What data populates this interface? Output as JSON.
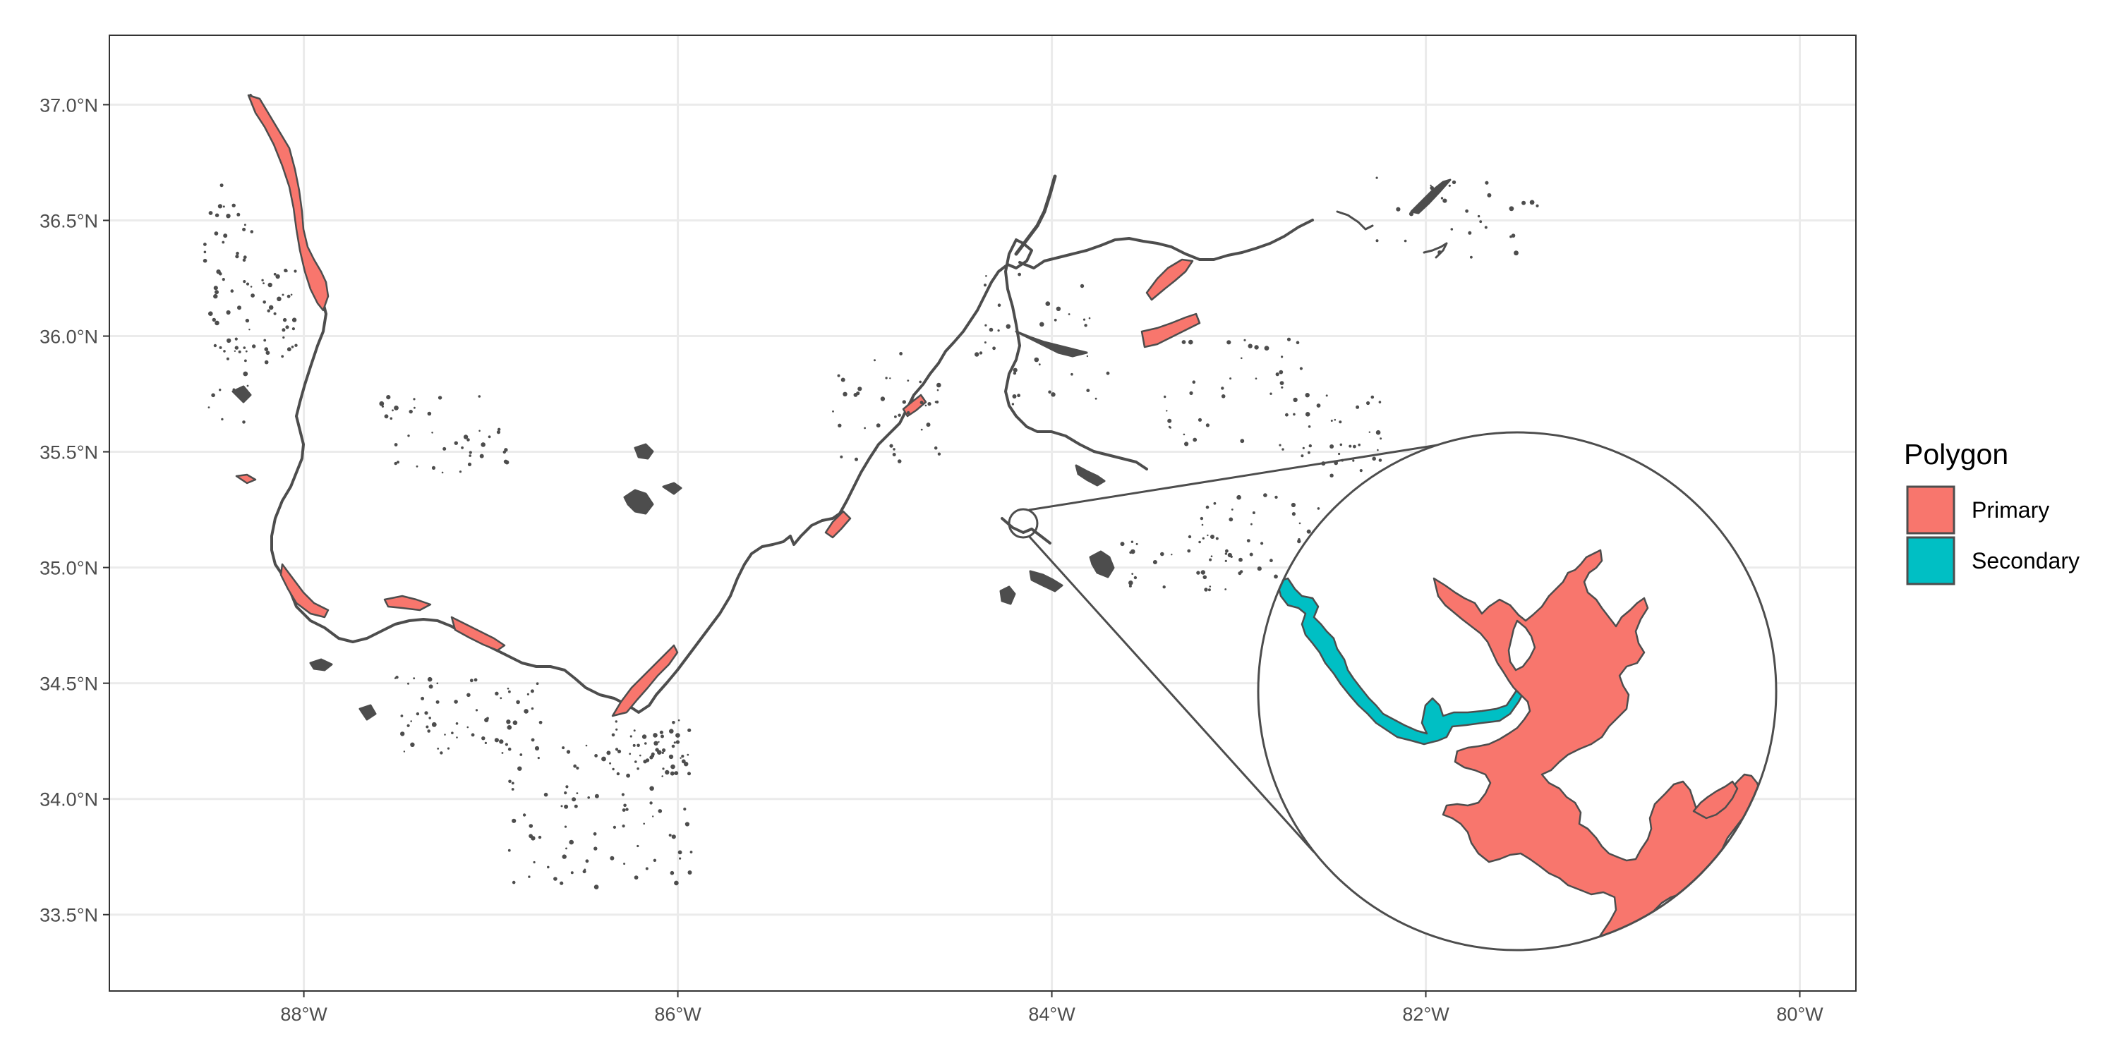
{
  "map": {
    "x_axis": {
      "unit": "longitude",
      "range": [
        -89.04,
        -79.7
      ],
      "ticks": [
        {
          "value": -88,
          "label": "88°W"
        },
        {
          "value": -86,
          "label": "86°W"
        },
        {
          "value": -84,
          "label": "84°W"
        },
        {
          "value": -82,
          "label": "82°W"
        },
        {
          "value": -80,
          "label": "80°W"
        }
      ]
    },
    "y_axis": {
      "unit": "latitude",
      "range": [
        33.17,
        37.3
      ],
      "ticks": [
        {
          "value": 33.5,
          "label": "33.5°N"
        },
        {
          "value": 34.0,
          "label": "34.0°N"
        },
        {
          "value": 34.5,
          "label": "34.5°N"
        },
        {
          "value": 35.0,
          "label": "35.0°N"
        },
        {
          "value": 35.5,
          "label": "35.5°N"
        },
        {
          "value": 36.0,
          "label": "36.0°N"
        },
        {
          "value": 36.5,
          "label": "36.5°N"
        },
        {
          "value": 37.0,
          "label": "37.0°N"
        }
      ]
    },
    "grid": true,
    "legend": {
      "title": "Polygon",
      "placement": "right",
      "entries": [
        {
          "label": "Primary",
          "color": "#F8766D"
        },
        {
          "label": "Secondary",
          "color": "#00BFC4"
        }
      ]
    },
    "colors": {
      "primary": "#F8766D",
      "secondary": "#00BFC4",
      "outline": "#4d4d4d",
      "grid": "#ebebeb",
      "panel_border": "#333333"
    },
    "zoom_inset": {
      "focus_lon": -84.17,
      "focus_lat": 35.17,
      "shape": "circle"
    }
  }
}
